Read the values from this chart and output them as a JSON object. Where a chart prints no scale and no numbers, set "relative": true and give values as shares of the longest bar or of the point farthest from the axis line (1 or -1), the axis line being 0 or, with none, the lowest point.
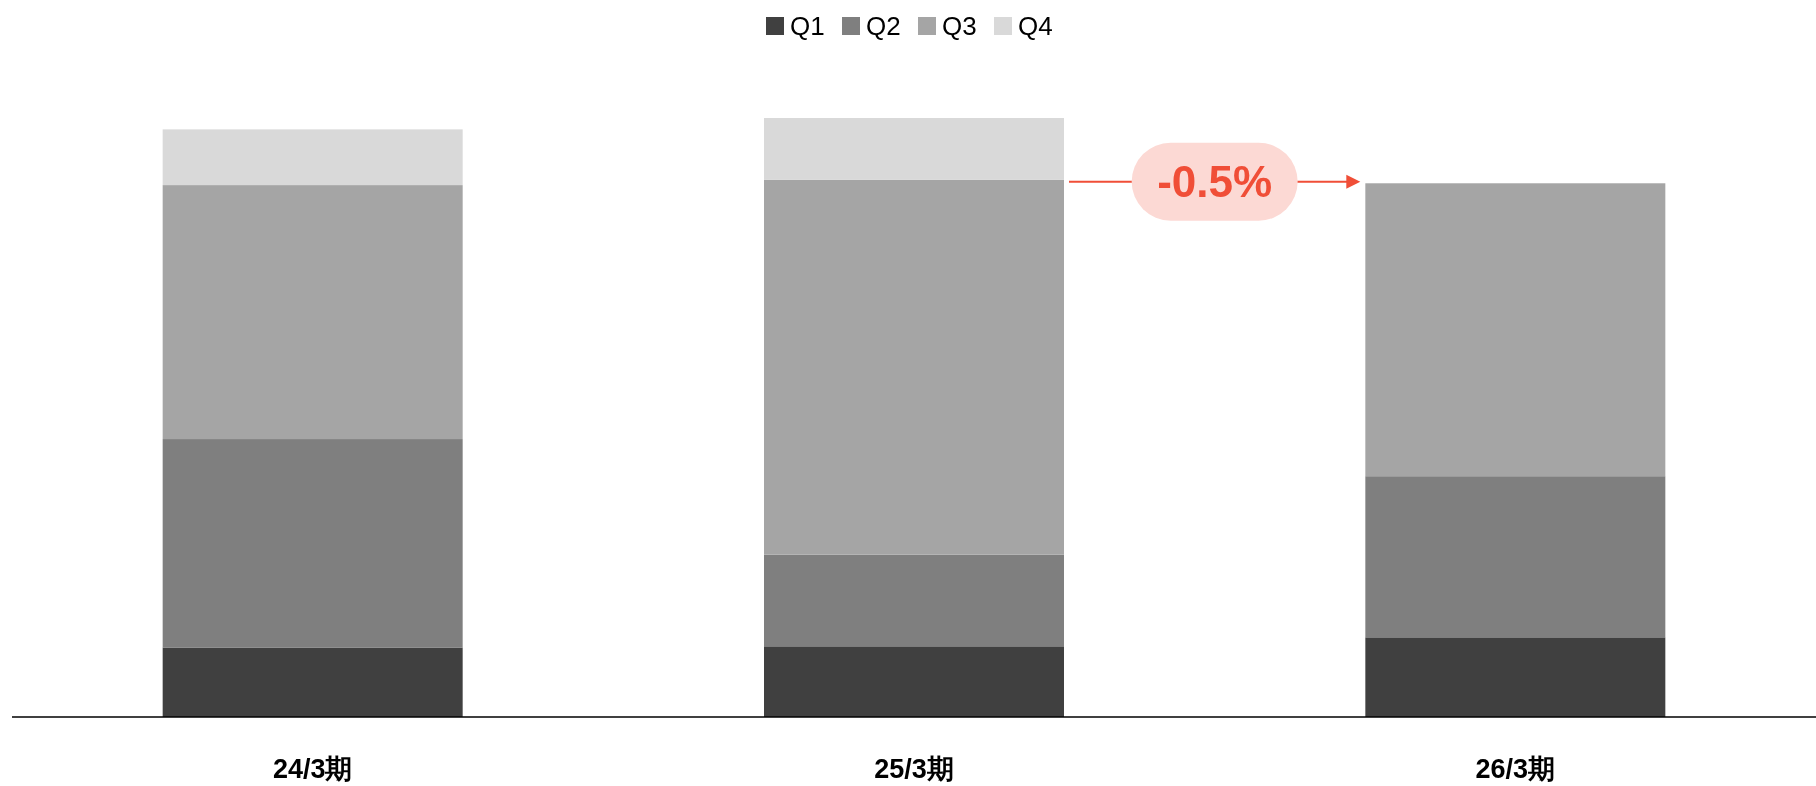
{
  "chart_data": {
    "type": "bar",
    "stacked": true,
    "relative": true,
    "legend": "top",
    "categories": [
      "24/3期",
      "25/3期",
      "26/3期"
    ],
    "series": [
      {
        "name": "Q1",
        "color": "#404040",
        "values": [
          0.116,
          0.118,
          0.133
        ]
      },
      {
        "name": "Q2",
        "color": "#7f7f7f",
        "values": [
          0.348,
          0.153,
          0.269
        ]
      },
      {
        "name": "Q3",
        "color": "#a5a5a5",
        "values": [
          0.424,
          0.626,
          0.489
        ]
      },
      {
        "name": "Q4",
        "color": "#d9d9d9",
        "values": [
          0.093,
          0.103,
          null
        ]
      }
    ],
    "annotations": [
      "-0.5%"
    ]
  }
}
